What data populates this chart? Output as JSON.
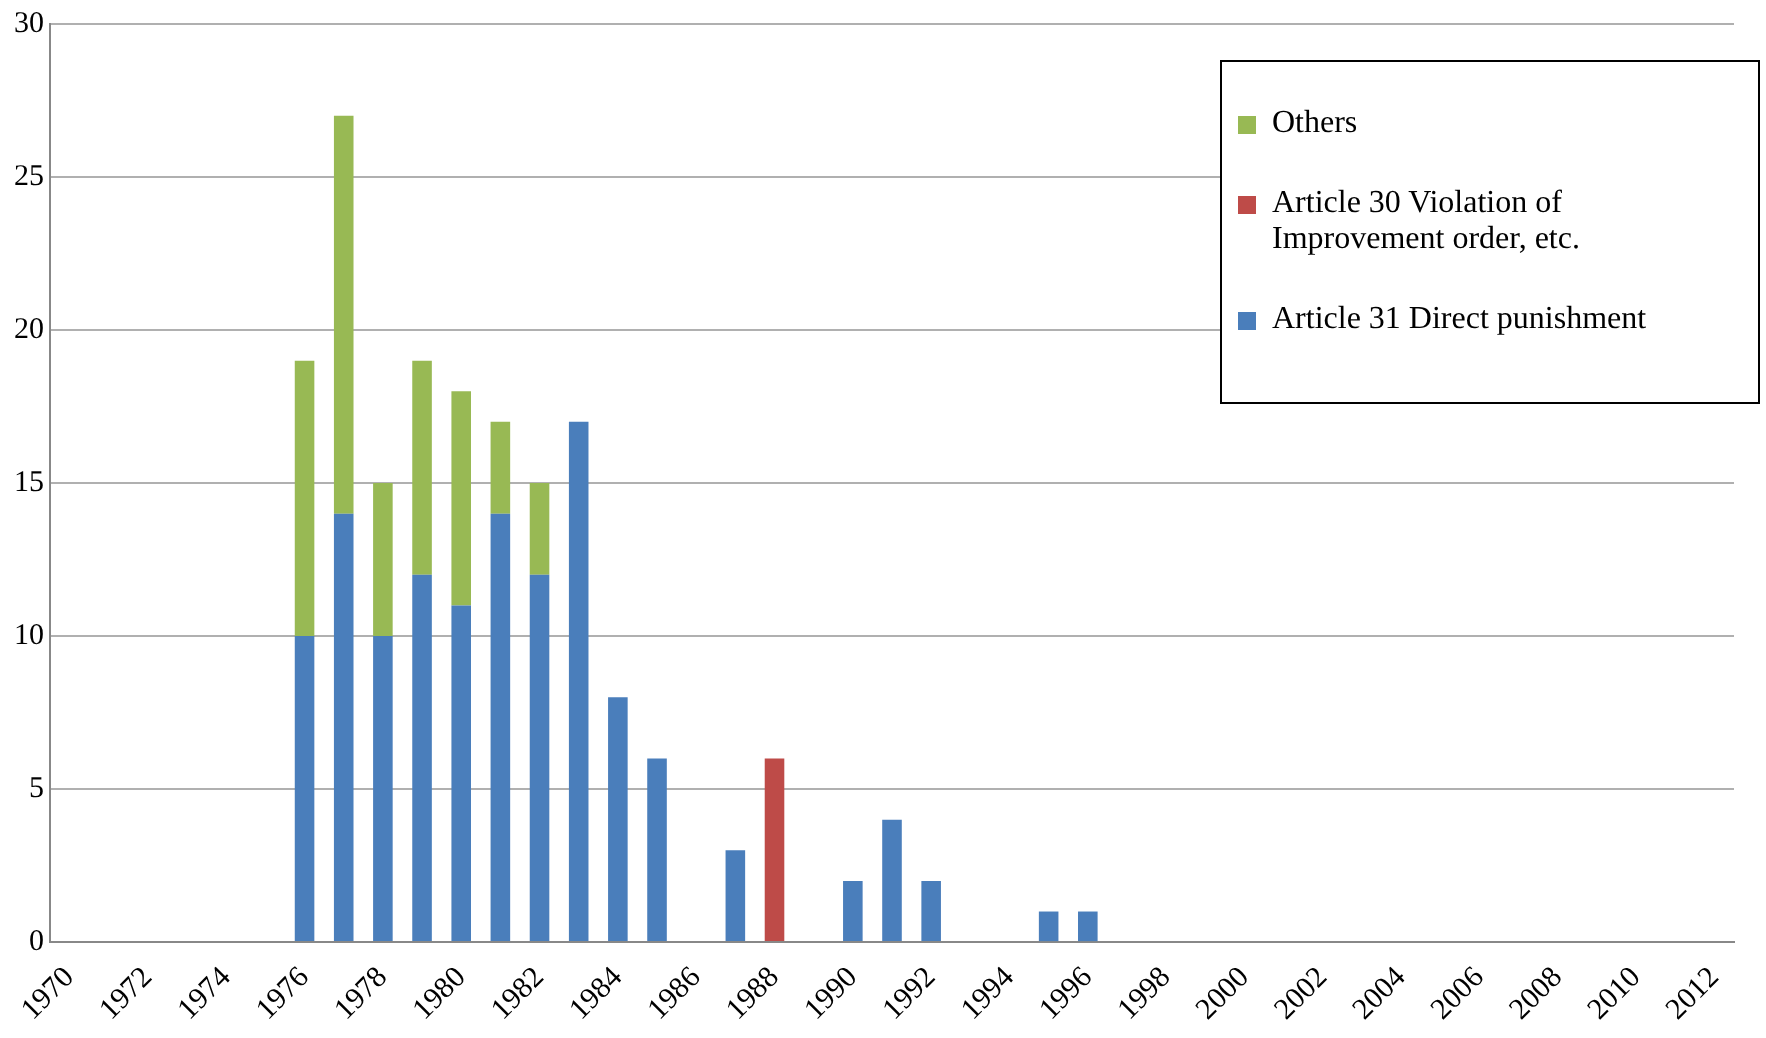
{
  "chart_data": {
    "type": "bar",
    "stacked": true,
    "grid": "y",
    "legend": "top right",
    "categories": [
      "1970",
      null,
      "1972",
      null,
      "1974",
      null,
      "1976",
      null,
      "1978",
      null,
      "1980",
      null,
      "1982",
      null,
      "1984",
      null,
      "1986",
      null,
      "1988",
      null,
      "1990",
      null,
      "1992",
      null,
      "1994",
      null,
      "1996",
      null,
      "1998",
      null,
      "2000",
      null,
      "2002",
      null,
      "2004",
      null,
      "2006",
      null,
      "2008",
      null,
      "2010",
      null,
      "2012"
    ],
    "ylim": [
      0,
      30
    ],
    "yticks": [
      0,
      5,
      10,
      15,
      20,
      25,
      30
    ],
    "series": [
      {
        "name": "Article 31 Direct punishment",
        "color": "#4a7ebb",
        "values": [
          0,
          0,
          0,
          0,
          0,
          0,
          10,
          14,
          10,
          12,
          11,
          14,
          12,
          17,
          8,
          6,
          0,
          3,
          0,
          0,
          2,
          4,
          2,
          0,
          0,
          1,
          1,
          0,
          0,
          0,
          0,
          0,
          0,
          0,
          0,
          0,
          0,
          0,
          0,
          0,
          0,
          0,
          0
        ]
      },
      {
        "name": "Article 30 Violation of Improvement order, etc.",
        "color": "#be4b48",
        "values": [
          0,
          0,
          0,
          0,
          0,
          0,
          0,
          0,
          0,
          0,
          0,
          0,
          0,
          0,
          0,
          0,
          0,
          0,
          6,
          0,
          0,
          0,
          0,
          0,
          0,
          0,
          0,
          0,
          0,
          0,
          0,
          0,
          0,
          0,
          0,
          0,
          0,
          0,
          0,
          0,
          0,
          0,
          0
        ]
      },
      {
        "name": "Others",
        "color": "#98b954",
        "values": [
          0,
          0,
          0,
          0,
          0,
          0,
          9,
          13,
          5,
          7,
          7,
          3,
          3,
          0,
          0,
          0,
          0,
          0,
          0,
          0,
          0,
          0,
          0,
          0,
          0,
          0,
          0,
          0,
          0,
          0,
          0,
          0,
          0,
          0,
          0,
          0,
          0,
          0,
          0,
          0,
          0,
          0,
          0
        ]
      }
    ]
  }
}
